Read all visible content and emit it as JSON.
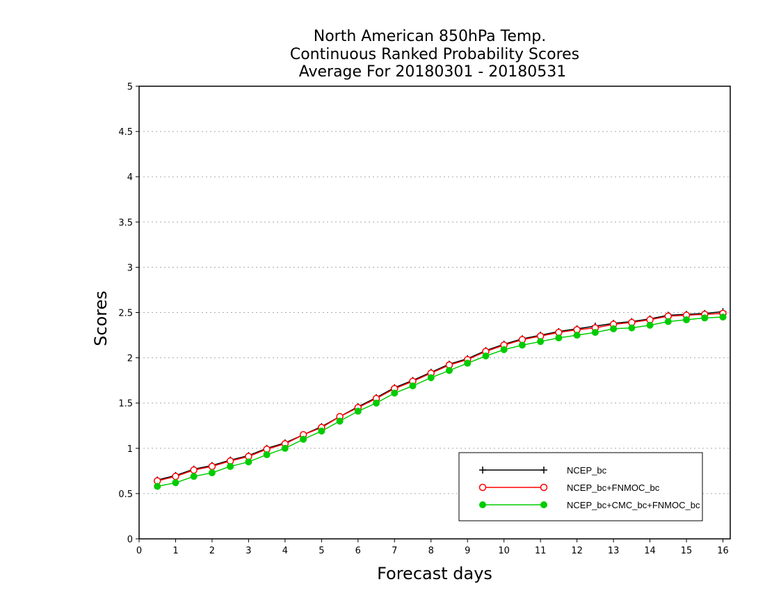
{
  "chart_data": {
    "type": "line",
    "title": [
      "North American 850hPa Temp.",
      "Continuous Ranked Probability Scores",
      "Average For 20180301 - 20180531"
    ],
    "xlabel": "Forecast days",
    "ylabel": "Scores",
    "xlim": [
      0,
      16.2
    ],
    "ylim": [
      0,
      5
    ],
    "x_ticks": [
      0,
      1,
      2,
      3,
      4,
      5,
      6,
      7,
      8,
      9,
      10,
      11,
      12,
      13,
      14,
      15,
      16
    ],
    "y_ticks": [
      0,
      0.5,
      1,
      1.5,
      2,
      2.5,
      3,
      3.5,
      4,
      4.5,
      5
    ],
    "y_tick_labels": [
      "0",
      "0.5",
      "1",
      "1.5",
      "2",
      "2.5",
      "3",
      "3.5",
      "4",
      "4.5",
      "5"
    ],
    "grid": "horizontal-dotted",
    "legend_position": "bottom-right",
    "x": [
      0.5,
      1,
      1.5,
      2,
      2.5,
      3,
      3.5,
      4,
      4.5,
      5,
      5.5,
      6,
      6.5,
      7,
      7.5,
      8,
      8.5,
      9,
      9.5,
      10,
      10.5,
      11,
      11.5,
      12,
      12.5,
      13,
      13.5,
      14,
      14.5,
      15,
      15.5,
      16
    ],
    "series": [
      {
        "name": "NCEP_bc",
        "color": "#000000",
        "marker": "plus",
        "values": [
          0.65,
          0.7,
          0.77,
          0.81,
          0.87,
          0.92,
          1.0,
          1.06,
          1.15,
          1.24,
          1.35,
          1.46,
          1.56,
          1.67,
          1.75,
          1.84,
          1.93,
          1.99,
          2.08,
          2.15,
          2.21,
          2.25,
          2.29,
          2.32,
          2.35,
          2.38,
          2.4,
          2.43,
          2.47,
          2.48,
          2.49,
          2.51
        ]
      },
      {
        "name": "NCEP_bc+FNMOC_bc",
        "color": "#ff0000",
        "marker": "open-circle",
        "values": [
          0.64,
          0.69,
          0.76,
          0.8,
          0.86,
          0.91,
          0.99,
          1.05,
          1.15,
          1.23,
          1.35,
          1.45,
          1.55,
          1.66,
          1.74,
          1.83,
          1.92,
          1.98,
          2.07,
          2.14,
          2.2,
          2.24,
          2.28,
          2.31,
          2.33,
          2.37,
          2.39,
          2.42,
          2.46,
          2.47,
          2.48,
          2.49
        ]
      },
      {
        "name": "NCEP_bc+CMC_bc+FNMOC_bc",
        "color": "#00cc00",
        "marker": "filled-circle",
        "values": [
          0.58,
          0.62,
          0.69,
          0.73,
          0.8,
          0.85,
          0.93,
          1.0,
          1.1,
          1.19,
          1.3,
          1.41,
          1.5,
          1.61,
          1.69,
          1.78,
          1.86,
          1.94,
          2.02,
          2.09,
          2.14,
          2.18,
          2.22,
          2.25,
          2.28,
          2.32,
          2.33,
          2.36,
          2.4,
          2.42,
          2.44,
          2.45
        ]
      }
    ]
  }
}
